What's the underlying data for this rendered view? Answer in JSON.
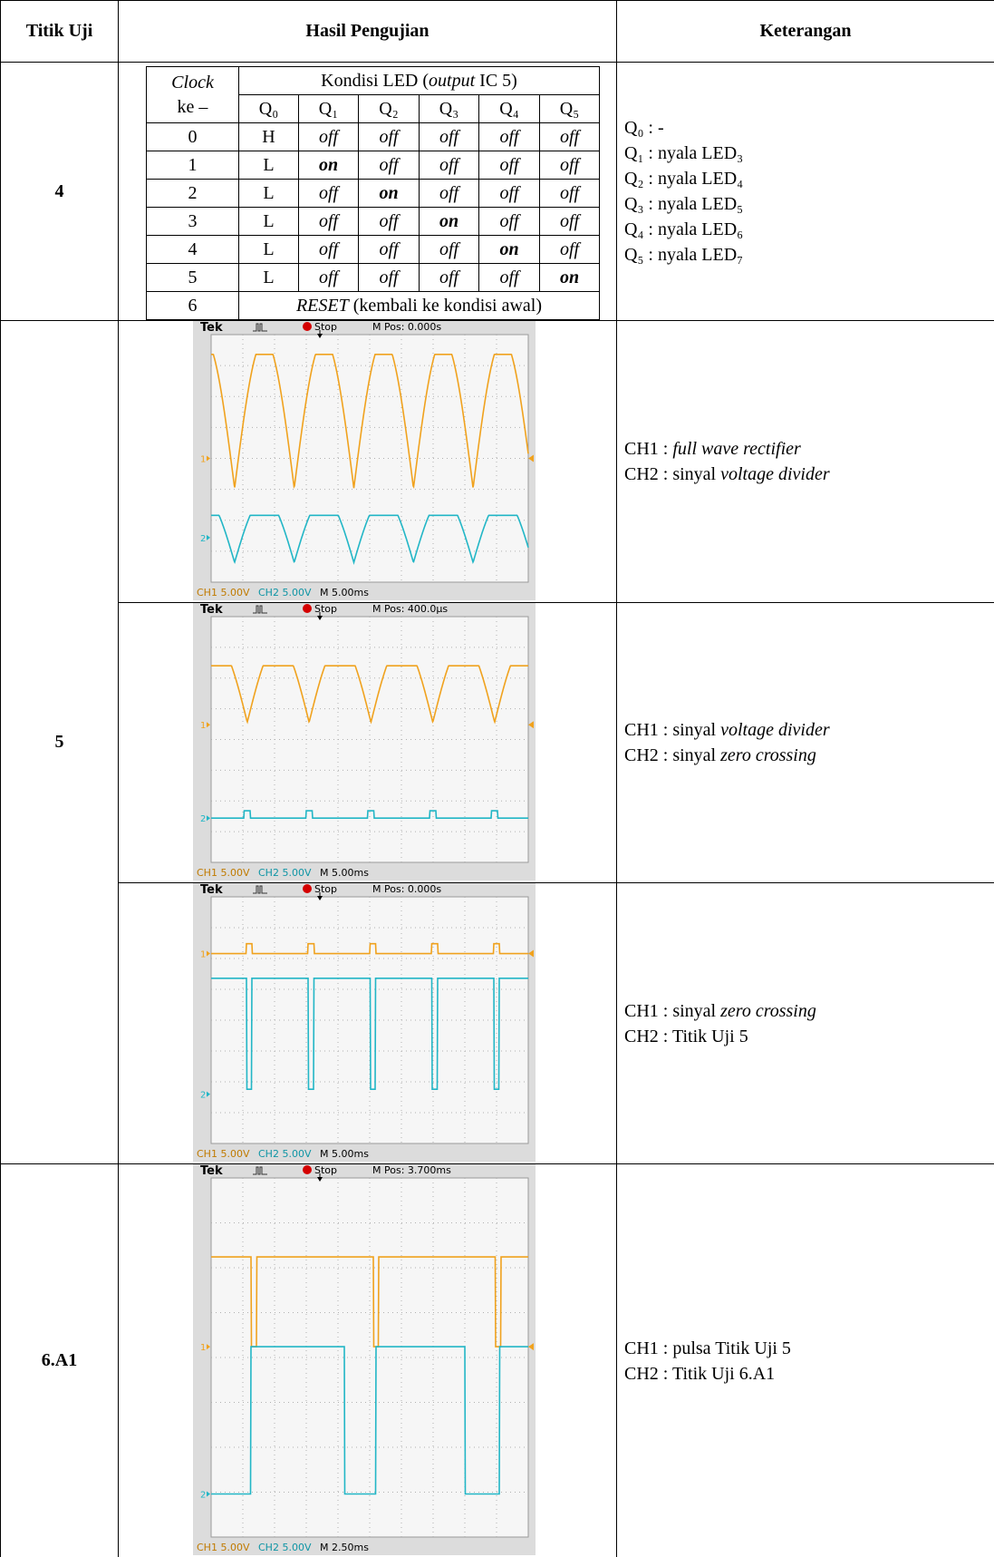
{
  "header": {
    "titik_uji": "Titik Uji",
    "hasil": "Hasil Pengujian",
    "keterangan": "Keterangan"
  },
  "rows": [
    {
      "titik_uji": "4",
      "led_table": {
        "clock_header": [
          "Clock",
          "ke –"
        ],
        "kondisi_header": [
          "Kondisi LED (",
          "output",
          " IC 5)"
        ],
        "columns": [
          "Q₀",
          "Q₁",
          "Q₂",
          "Q₃",
          "Q₄",
          "Q₅"
        ],
        "rows": [
          [
            "0",
            "H",
            "off",
            "off",
            "off",
            "off",
            "off"
          ],
          [
            "1",
            "L",
            "on",
            "off",
            "off",
            "off",
            "off"
          ],
          [
            "2",
            "L",
            "off",
            "on",
            "off",
            "off",
            "off"
          ],
          [
            "3",
            "L",
            "off",
            "off",
            "on",
            "off",
            "off"
          ],
          [
            "4",
            "L",
            "off",
            "off",
            "off",
            "on",
            "off"
          ],
          [
            "5",
            "L",
            "off",
            "off",
            "off",
            "off",
            "on"
          ]
        ],
        "reset_row": {
          "clock": "6",
          "text": [
            "RESET",
            " (kembali ke kondisi awal)"
          ]
        }
      },
      "keterangan": [
        [
          "Q₀ : -"
        ],
        [
          "Q₁ : nyala LED₃"
        ],
        [
          "Q₂ : nyala LED₄"
        ],
        [
          "Q₃ : nyala LED₅"
        ],
        [
          "Q₄ : nyala LED₆"
        ],
        [
          "Q₅ : nyala LED₇"
        ]
      ]
    },
    {
      "titik_uji": "5",
      "entries": [
        {
          "scope": {
            "brand": "Tek",
            "status": "Stop",
            "position": "M Pos: 0.000s",
            "ch1_marker": "1",
            "ch2_marker": "2",
            "ch1": "CH1 5.00V",
            "ch2": "CH2 5.00V",
            "timebase": "M 5.00ms"
          },
          "keterangan": [
            [
              "CH1 : ",
              "full wave rectifier"
            ],
            [
              "CH2 : sinyal ",
              "voltage divider"
            ]
          ]
        },
        {
          "scope": {
            "brand": "Tek",
            "status": "Stop",
            "position": "M Pos: 400.0µs",
            "ch1_marker": "1",
            "ch2_marker": "2",
            "ch1": "CH1 5.00V",
            "ch2": "CH2 5.00V",
            "timebase": "M 5.00ms"
          },
          "keterangan": [
            [
              "CH1 : sinyal ",
              "voltage divider"
            ],
            [
              "CH2 : sinyal ",
              "zero crossing"
            ]
          ]
        },
        {
          "scope": {
            "brand": "Tek",
            "status": "Stop",
            "position": "M Pos: 0.000s",
            "ch1_marker": "1",
            "ch2_marker": "2",
            "ch1": "CH1 5.00V",
            "ch2": "CH2 5.00V",
            "timebase": "M 5.00ms"
          },
          "keterangan": [
            [
              "CH1 : sinyal ",
              "zero crossing"
            ],
            [
              "CH2 : Titik Uji 5"
            ]
          ]
        }
      ]
    },
    {
      "titik_uji": "6.A1",
      "entries": [
        {
          "scope": {
            "brand": "Tek",
            "status": "Stop",
            "position": "M Pos: 3.700ms",
            "ch1_marker": "1",
            "ch2_marker": "2",
            "ch1": "CH1 5.00V",
            "ch2": "CH2 5.00V",
            "timebase": "M 2.50ms"
          },
          "keterangan": [
            [
              "CH1 : pulsa Titik Uji 5"
            ],
            [
              "CH2 : Titik Uji 6.A1"
            ]
          ]
        }
      ]
    }
  ]
}
